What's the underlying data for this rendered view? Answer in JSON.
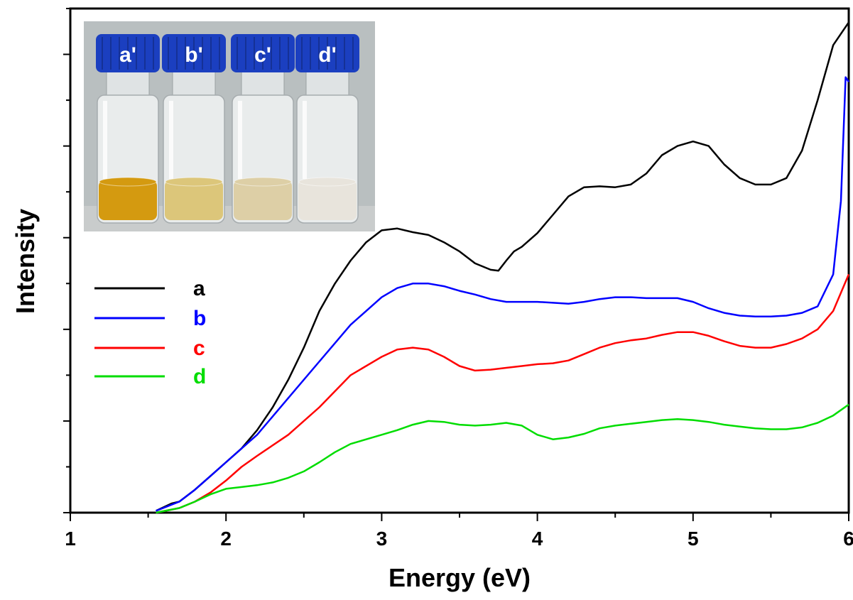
{
  "chart_data": {
    "type": "line",
    "title": "",
    "xlabel": "Energy (eV)",
    "ylabel": "Intensity",
    "xlim": [
      1,
      6
    ],
    "ylim": [
      0,
      5.5
    ],
    "xticks": [
      "1",
      "2",
      "3",
      "4",
      "5",
      "6"
    ],
    "y_tick_labels_shown": false,
    "grid": false,
    "legend_position": "left-middle",
    "series": [
      {
        "name": "a",
        "color": "#000000",
        "x": [
          1.55,
          1.6,
          1.65,
          1.7,
          1.8,
          1.9,
          2.0,
          2.1,
          2.2,
          2.3,
          2.4,
          2.5,
          2.6,
          2.7,
          2.8,
          2.9,
          3.0,
          3.1,
          3.2,
          3.3,
          3.4,
          3.5,
          3.6,
          3.7,
          3.75,
          3.8,
          3.85,
          3.9,
          4.0,
          4.1,
          4.2,
          4.3,
          4.4,
          4.5,
          4.6,
          4.7,
          4.8,
          4.9,
          5.0,
          5.1,
          5.2,
          5.3,
          5.4,
          5.5,
          5.6,
          5.7,
          5.8,
          5.9,
          6.0
        ],
        "y": [
          0.02,
          0.06,
          0.1,
          0.12,
          0.25,
          0.4,
          0.55,
          0.7,
          0.9,
          1.15,
          1.45,
          1.8,
          2.2,
          2.5,
          2.75,
          2.95,
          3.08,
          3.1,
          3.06,
          3.03,
          2.95,
          2.85,
          2.72,
          2.65,
          2.64,
          2.75,
          2.85,
          2.9,
          3.05,
          3.25,
          3.45,
          3.55,
          3.56,
          3.55,
          3.58,
          3.7,
          3.9,
          4.0,
          4.05,
          4.0,
          3.8,
          3.65,
          3.58,
          3.58,
          3.65,
          3.95,
          4.5,
          5.1,
          5.35
        ]
      },
      {
        "name": "b",
        "color": "#0000ff",
        "x": [
          1.55,
          1.7,
          1.8,
          1.9,
          2.0,
          2.2,
          2.4,
          2.6,
          2.8,
          3.0,
          3.1,
          3.2,
          3.3,
          3.4,
          3.5,
          3.6,
          3.7,
          3.8,
          3.9,
          4.0,
          4.1,
          4.2,
          4.3,
          4.4,
          4.5,
          4.6,
          4.7,
          4.8,
          4.9,
          5.0,
          5.1,
          5.2,
          5.3,
          5.4,
          5.5,
          5.6,
          5.7,
          5.8,
          5.9,
          5.95,
          5.98,
          6.0
        ],
        "y": [
          0.02,
          0.12,
          0.25,
          0.4,
          0.55,
          0.85,
          1.25,
          1.65,
          2.05,
          2.35,
          2.45,
          2.5,
          2.5,
          2.47,
          2.42,
          2.38,
          2.33,
          2.3,
          2.3,
          2.3,
          2.29,
          2.28,
          2.3,
          2.33,
          2.35,
          2.35,
          2.34,
          2.34,
          2.34,
          2.3,
          2.23,
          2.18,
          2.15,
          2.14,
          2.14,
          2.15,
          2.18,
          2.25,
          2.6,
          3.4,
          4.75,
          4.7
        ]
      },
      {
        "name": "c",
        "color": "#ff0000",
        "x": [
          1.55,
          1.7,
          1.8,
          1.9,
          2.0,
          2.1,
          2.2,
          2.4,
          2.6,
          2.8,
          3.0,
          3.1,
          3.2,
          3.3,
          3.4,
          3.5,
          3.6,
          3.7,
          3.8,
          3.9,
          4.0,
          4.1,
          4.2,
          4.3,
          4.4,
          4.5,
          4.6,
          4.7,
          4.8,
          4.9,
          5.0,
          5.1,
          5.2,
          5.3,
          5.4,
          5.5,
          5.6,
          5.7,
          5.8,
          5.9,
          6.0
        ],
        "y": [
          0.0,
          0.05,
          0.12,
          0.22,
          0.35,
          0.5,
          0.62,
          0.85,
          1.15,
          1.5,
          1.7,
          1.78,
          1.8,
          1.78,
          1.7,
          1.6,
          1.55,
          1.56,
          1.58,
          1.6,
          1.62,
          1.63,
          1.66,
          1.73,
          1.8,
          1.85,
          1.88,
          1.9,
          1.94,
          1.97,
          1.97,
          1.93,
          1.87,
          1.82,
          1.8,
          1.8,
          1.84,
          1.9,
          2.0,
          2.2,
          2.6
        ]
      },
      {
        "name": "d",
        "color": "#00dd00",
        "x": [
          1.55,
          1.7,
          1.8,
          1.9,
          2.0,
          2.1,
          2.2,
          2.3,
          2.4,
          2.5,
          2.6,
          2.7,
          2.8,
          3.0,
          3.1,
          3.2,
          3.3,
          3.4,
          3.5,
          3.6,
          3.7,
          3.8,
          3.9,
          4.0,
          4.1,
          4.2,
          4.3,
          4.4,
          4.5,
          4.6,
          4.7,
          4.8,
          4.9,
          5.0,
          5.1,
          5.2,
          5.3,
          5.4,
          5.5,
          5.6,
          5.7,
          5.8,
          5.9,
          6.0
        ],
        "y": [
          0.0,
          0.05,
          0.12,
          0.2,
          0.26,
          0.28,
          0.3,
          0.33,
          0.38,
          0.45,
          0.55,
          0.66,
          0.75,
          0.85,
          0.9,
          0.96,
          1.0,
          0.99,
          0.96,
          0.95,
          0.96,
          0.98,
          0.95,
          0.85,
          0.8,
          0.82,
          0.86,
          0.92,
          0.95,
          0.97,
          0.99,
          1.01,
          1.02,
          1.01,
          0.99,
          0.96,
          0.94,
          0.92,
          0.91,
          0.91,
          0.93,
          0.98,
          1.06,
          1.18
        ]
      }
    ]
  },
  "inset": {
    "vial_labels": [
      "a'",
      "b'",
      "c'",
      "d'"
    ],
    "cap_color": "#1b3fc0",
    "liquid_colors": [
      "#d49a10",
      "#dcc67a",
      "#ddcfa6",
      "#e8e4dc"
    ],
    "background_color": "#b9bfc0"
  }
}
